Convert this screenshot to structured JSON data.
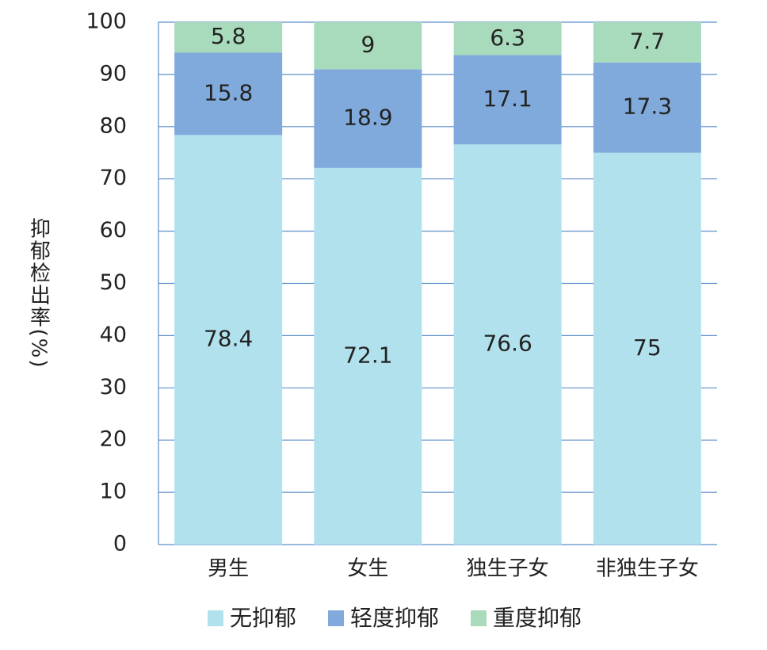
{
  "chart_data": {
    "type": "bar",
    "stacked": true,
    "y_label": "抑郁检出率(%)",
    "categories": [
      "男生",
      "女生",
      "独生子女",
      "非独生子女"
    ],
    "series": [
      {
        "name": "无抑郁",
        "color": "#b2e1ee",
        "values": [
          78.4,
          72.1,
          76.6,
          75
        ]
      },
      {
        "name": "轻度抑郁",
        "color": "#80aadb",
        "values": [
          15.8,
          18.9,
          17.1,
          17.3
        ]
      },
      {
        "name": "重度抑郁",
        "color": "#a8dbbb",
        "values": [
          5.8,
          9,
          6.3,
          7.7
        ]
      }
    ],
    "ylim": [
      0,
      100
    ],
    "yticks": [
      0,
      10,
      20,
      30,
      40,
      50,
      60,
      70,
      80,
      90,
      100
    ],
    "grid": true
  }
}
